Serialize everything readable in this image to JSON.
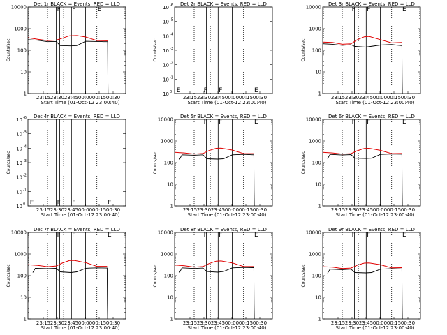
{
  "colors": {
    "events": "#000000",
    "lld": "#e00000",
    "frame": "#000000"
  },
  "time_ticks": [
    "23:15",
    "23:30",
    "23:45",
    "00:00",
    "00:15",
    "00:30"
  ],
  "xlabel": "Start Time (01-Oct-12 23:00:40)",
  "ylabel": "Counts/sec",
  "chart_data": [
    {
      "type": "line",
      "title": "Det 1r BLACK = Events, RED = LLD",
      "scale": "log",
      "y_ticks": [
        "1",
        "10",
        "100",
        "1000",
        "10000"
      ],
      "ylim": [
        1,
        10000
      ],
      "x_range_min": [
        0,
        40
      ],
      "vlines_dotted_min": [
        8,
        14.6,
        28.2
      ],
      "vlines_solid_min": [
        11.6,
        13.0,
        17.8,
        23.6
      ],
      "markers": [
        {
          "label": "F",
          "t": 11.6
        },
        {
          "label": "F",
          "t": 17.8
        },
        {
          "label": "E",
          "t": 28.2
        }
      ],
      "series": [
        {
          "name": "Events",
          "x": [
            0,
            4,
            8,
            10,
            11.6,
            13.2,
            17.6,
            20,
            23.6,
            28.2,
            29.5,
            31,
            32.6,
            32.7,
            32.8
          ],
          "y": [
            310,
            290,
            250,
            255,
            255,
            165,
            160,
            165,
            260,
            255,
            255,
            250,
            250,
            4,
            1
          ]
        },
        {
          "name": "LLD",
          "x": [
            0,
            4,
            8,
            11.6,
            14,
            17,
            20,
            23.6,
            28.2,
            32.6
          ],
          "y": [
            380,
            320,
            280,
            295,
            360,
            470,
            480,
            410,
            280,
            275
          ]
        }
      ]
    },
    {
      "type": "line",
      "title": "Det 2r BLACK = Events, RED = LLD",
      "scale": "exp",
      "y_ticks_base": [
        "10",
        "10",
        "10",
        "10",
        "10",
        "10",
        "10"
      ],
      "y_ticks_exp": [
        "0",
        "-1",
        "-2",
        "-3",
        "-4",
        "-5",
        "-6"
      ],
      "ylim": [
        0,
        -6
      ],
      "x_range_min": [
        0,
        40
      ],
      "vlines_dotted_min": [
        8,
        14.6,
        28.2
      ],
      "vlines_solid_min": [
        11.6,
        13.0,
        17.8,
        23.6
      ],
      "markers": [
        {
          "label": "E",
          "t": 0.5
        },
        {
          "label": "F",
          "t": 11.6
        },
        {
          "label": "F",
          "t": 17.8
        },
        {
          "label": "E",
          "t": 32.3
        }
      ],
      "series": []
    },
    {
      "type": "line",
      "title": "Det 3r BLACK = Events, RED = LLD",
      "scale": "log",
      "y_ticks": [
        "1",
        "10",
        "100",
        "1000",
        "10000"
      ],
      "ylim": [
        1,
        10000
      ],
      "x_range_min": [
        0,
        40
      ],
      "vlines_dotted_min": [
        8,
        14.6,
        28.2
      ],
      "vlines_solid_min": [
        11.6,
        13.0,
        17.8,
        23.6
      ],
      "markers": [
        {
          "label": "F",
          "t": 11.6
        },
        {
          "label": "F",
          "t": 17.8
        },
        {
          "label": "E",
          "t": 32.3
        }
      ],
      "series": [
        {
          "name": "Events",
          "x": [
            0,
            4,
            8,
            11.6,
            13.2,
            17.6,
            23.6,
            28.2,
            30,
            32.4,
            32.5,
            32.6
          ],
          "y": [
            200,
            190,
            170,
            180,
            150,
            140,
            175,
            185,
            175,
            165,
            5,
            1
          ]
        },
        {
          "name": "LLD",
          "x": [
            0,
            4,
            8,
            11.6,
            14,
            17,
            19,
            23.6,
            28.2,
            32.4
          ],
          "y": [
            240,
            230,
            190,
            200,
            300,
            420,
            440,
            310,
            220,
            230
          ]
        }
      ]
    },
    {
      "type": "line",
      "title": "Det 4r BLACK = Events, RED = LLD",
      "scale": "exp",
      "y_ticks_base": [
        "10",
        "10",
        "10",
        "10",
        "10",
        "10",
        "10"
      ],
      "y_ticks_exp": [
        "0",
        "-1",
        "-2",
        "-3",
        "-4",
        "-5",
        "-6"
      ],
      "ylim": [
        0,
        -6
      ],
      "x_range_min": [
        0,
        40
      ],
      "vlines_dotted_min": [
        8,
        14.6,
        28.2
      ],
      "vlines_solid_min": [
        11.6,
        13.0,
        17.8,
        23.6
      ],
      "markers": [
        {
          "label": "E",
          "t": 0.5
        },
        {
          "label": "F",
          "t": 11.6
        },
        {
          "label": "F",
          "t": 17.8
        },
        {
          "label": "E",
          "t": 32.3
        }
      ],
      "series": []
    },
    {
      "type": "line",
      "title": "Det 5r BLACK = Events, RED = LLD",
      "scale": "log",
      "y_ticks": [
        "1",
        "10",
        "100",
        "1000",
        "10000"
      ],
      "ylim": [
        1,
        10000
      ],
      "x_range_min": [
        0,
        40
      ],
      "vlines_dotted_min": [
        8,
        14.6,
        28.2
      ],
      "vlines_solid_min": [
        11.6,
        13.0,
        17.8,
        23.6
      ],
      "markers": [
        {
          "label": "F",
          "t": 11.6
        },
        {
          "label": "F",
          "t": 17.8
        },
        {
          "label": "E",
          "t": 32.3
        }
      ],
      "series": [
        {
          "name": "Events",
          "x": [
            2,
            3,
            8,
            11.6,
            13.2,
            17.6,
            20,
            23.6,
            28.2,
            32.4,
            32.5,
            32.6
          ],
          "y": [
            140,
            230,
            220,
            230,
            150,
            145,
            150,
            230,
            240,
            230,
            5,
            1
          ]
        },
        {
          "name": "LLD",
          "x": [
            0,
            4,
            8,
            11.6,
            14,
            17,
            19,
            23.6,
            28.2,
            32.4
          ],
          "y": [
            300,
            280,
            250,
            265,
            360,
            460,
            470,
            380,
            260,
            260
          ]
        }
      ]
    },
    {
      "type": "line",
      "title": "Det 6r BLACK = Events, RED = LLD",
      "scale": "log",
      "y_ticks": [
        "1",
        "10",
        "100",
        "1000",
        "10000"
      ],
      "ylim": [
        1,
        10000
      ],
      "x_range_min": [
        0,
        40
      ],
      "vlines_dotted_min": [
        8,
        14.6,
        28.2
      ],
      "vlines_solid_min": [
        11.6,
        13.0,
        17.8,
        23.6
      ],
      "markers": [
        {
          "label": "F",
          "t": 11.6
        },
        {
          "label": "F",
          "t": 17.8
        },
        {
          "label": "E",
          "t": 32.3
        }
      ],
      "series": [
        {
          "name": "Events",
          "x": [
            2,
            3,
            8,
            11.6,
            13.2,
            17.6,
            20,
            23.6,
            28.2,
            32.4,
            32.5,
            32.6
          ],
          "y": [
            150,
            240,
            225,
            235,
            160,
            155,
            160,
            240,
            250,
            245,
            5,
            1
          ]
        },
        {
          "name": "LLD",
          "x": [
            0,
            4,
            8,
            11.6,
            14,
            17,
            19,
            23.6,
            28.2,
            32.4
          ],
          "y": [
            300,
            280,
            250,
            260,
            350,
            450,
            460,
            370,
            260,
            265
          ]
        }
      ]
    },
    {
      "type": "line",
      "title": "Det 7r BLACK = Events, RED = LLD",
      "scale": "log",
      "y_ticks": [
        "1",
        "10",
        "100",
        "1000",
        "10000"
      ],
      "ylim": [
        1,
        10000
      ],
      "x_range_min": [
        0,
        40
      ],
      "vlines_dotted_min": [
        8,
        14.6,
        28.2
      ],
      "vlines_solid_min": [
        11.6,
        13.0,
        17.8,
        23.6
      ],
      "markers": [
        {
          "label": "F",
          "t": 11.6
        },
        {
          "label": "F",
          "t": 17.8
        },
        {
          "label": "E",
          "t": 32.3
        }
      ],
      "series": [
        {
          "name": "Events",
          "x": [
            2,
            3,
            8,
            11.6,
            13.2,
            17.6,
            20,
            23.6,
            28.2,
            32.4,
            32.5,
            32.6
          ],
          "y": [
            140,
            220,
            210,
            220,
            150,
            140,
            150,
            220,
            230,
            225,
            5,
            1
          ]
        },
        {
          "name": "LLD",
          "x": [
            0,
            4,
            8,
            11.6,
            14,
            17,
            19,
            23.6,
            28.2,
            32.4
          ],
          "y": [
            320,
            300,
            260,
            280,
            380,
            500,
            510,
            400,
            270,
            270
          ]
        }
      ]
    },
    {
      "type": "line",
      "title": "Det 8r BLACK = Events, RED = LLD",
      "scale": "log",
      "y_ticks": [
        "1",
        "10",
        "100",
        "1000",
        "10000"
      ],
      "ylim": [
        1,
        10000
      ],
      "x_range_min": [
        0,
        40
      ],
      "vlines_dotted_min": [
        8,
        14.6,
        28.2
      ],
      "vlines_solid_min": [
        11.6,
        13.0,
        17.8,
        23.6
      ],
      "markers": [
        {
          "label": "F",
          "t": 11.6
        },
        {
          "label": "F",
          "t": 17.8
        },
        {
          "label": "E",
          "t": 32.3
        }
      ],
      "series": [
        {
          "name": "Events",
          "x": [
            2,
            3,
            8,
            11.6,
            13.2,
            17.6,
            20,
            23.6,
            28.2,
            32.4,
            32.5,
            32.6
          ],
          "y": [
            140,
            230,
            215,
            225,
            155,
            145,
            155,
            230,
            240,
            235,
            5,
            1
          ]
        },
        {
          "name": "LLD",
          "x": [
            0,
            4,
            8,
            11.6,
            14,
            17,
            19,
            23.6,
            28.2,
            32.4
          ],
          "y": [
            310,
            290,
            250,
            265,
            360,
            470,
            480,
            390,
            265,
            265
          ]
        }
      ]
    },
    {
      "type": "line",
      "title": "Det 9r BLACK = Events, RED = LLD",
      "scale": "log",
      "y_ticks": [
        "1",
        "10",
        "100",
        "1000",
        "10000"
      ],
      "ylim": [
        1,
        10000
      ],
      "x_range_min": [
        0,
        40
      ],
      "vlines_dotted_min": [
        8,
        14.6,
        28.2
      ],
      "vlines_solid_min": [
        11.6,
        13.0,
        17.8,
        23.6
      ],
      "markers": [
        {
          "label": "F",
          "t": 11.6
        },
        {
          "label": "F",
          "t": 17.8
        },
        {
          "label": "E",
          "t": 32.3
        }
      ],
      "series": [
        {
          "name": "Events",
          "x": [
            2,
            3,
            8,
            11.6,
            13.2,
            17.6,
            20,
            23.6,
            28.2,
            32.4,
            32.5,
            32.6
          ],
          "y": [
            130,
            200,
            190,
            200,
            140,
            135,
            140,
            200,
            210,
            205,
            5,
            1
          ]
        },
        {
          "name": "LLD",
          "x": [
            0,
            4,
            8,
            11.6,
            14,
            17,
            19,
            23.6,
            28.2,
            32.4
          ],
          "y": [
            260,
            250,
            215,
            225,
            300,
            380,
            390,
            320,
            230,
            235
          ]
        }
      ]
    }
  ]
}
